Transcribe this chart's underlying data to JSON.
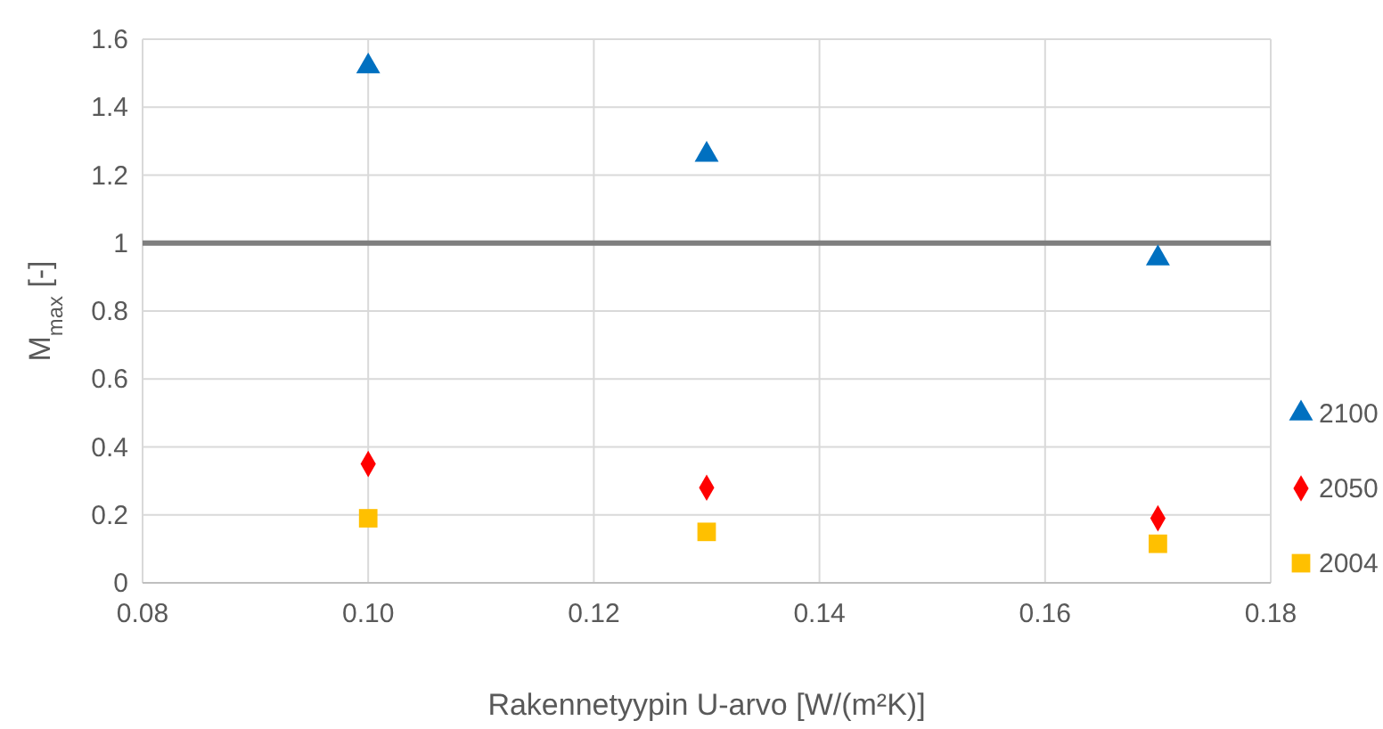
{
  "chart_data": {
    "type": "scatter",
    "xlabel": "Rakennetyypin U-arvo [W/(m²K)]",
    "ylabel": "M$_{max}$ [-]",
    "xlim": [
      0.08,
      0.18
    ],
    "xticks": [
      0.08,
      {
        "value": 0.1,
        "label": "0.10"
      },
      0.12,
      0.14,
      0.16,
      0.18
    ],
    "ylim": [
      0,
      1.6
    ],
    "yticks": [
      0,
      0.2,
      0.4,
      0.6,
      0.8,
      1,
      1.2,
      1.4,
      1.6
    ],
    "grid": true,
    "legend": "right",
    "ref_lines": [
      {
        "axis": "y",
        "value": 1,
        "color": "#7f7f7f"
      }
    ],
    "x": [
      0.1,
      0.13,
      0.17
    ],
    "series": [
      {
        "name": "2100",
        "color": "#0070c0",
        "marker": "triangle",
        "values": [
          1.52,
          1.26,
          0.955
        ]
      },
      {
        "name": "2050",
        "color": "#ff0000",
        "marker": "diamond",
        "values": [
          0.35,
          0.28,
          0.19
        ]
      },
      {
        "name": "2004",
        "color": "#ffc000",
        "marker": "square",
        "values": [
          0.19,
          0.15,
          0.115
        ]
      }
    ]
  }
}
